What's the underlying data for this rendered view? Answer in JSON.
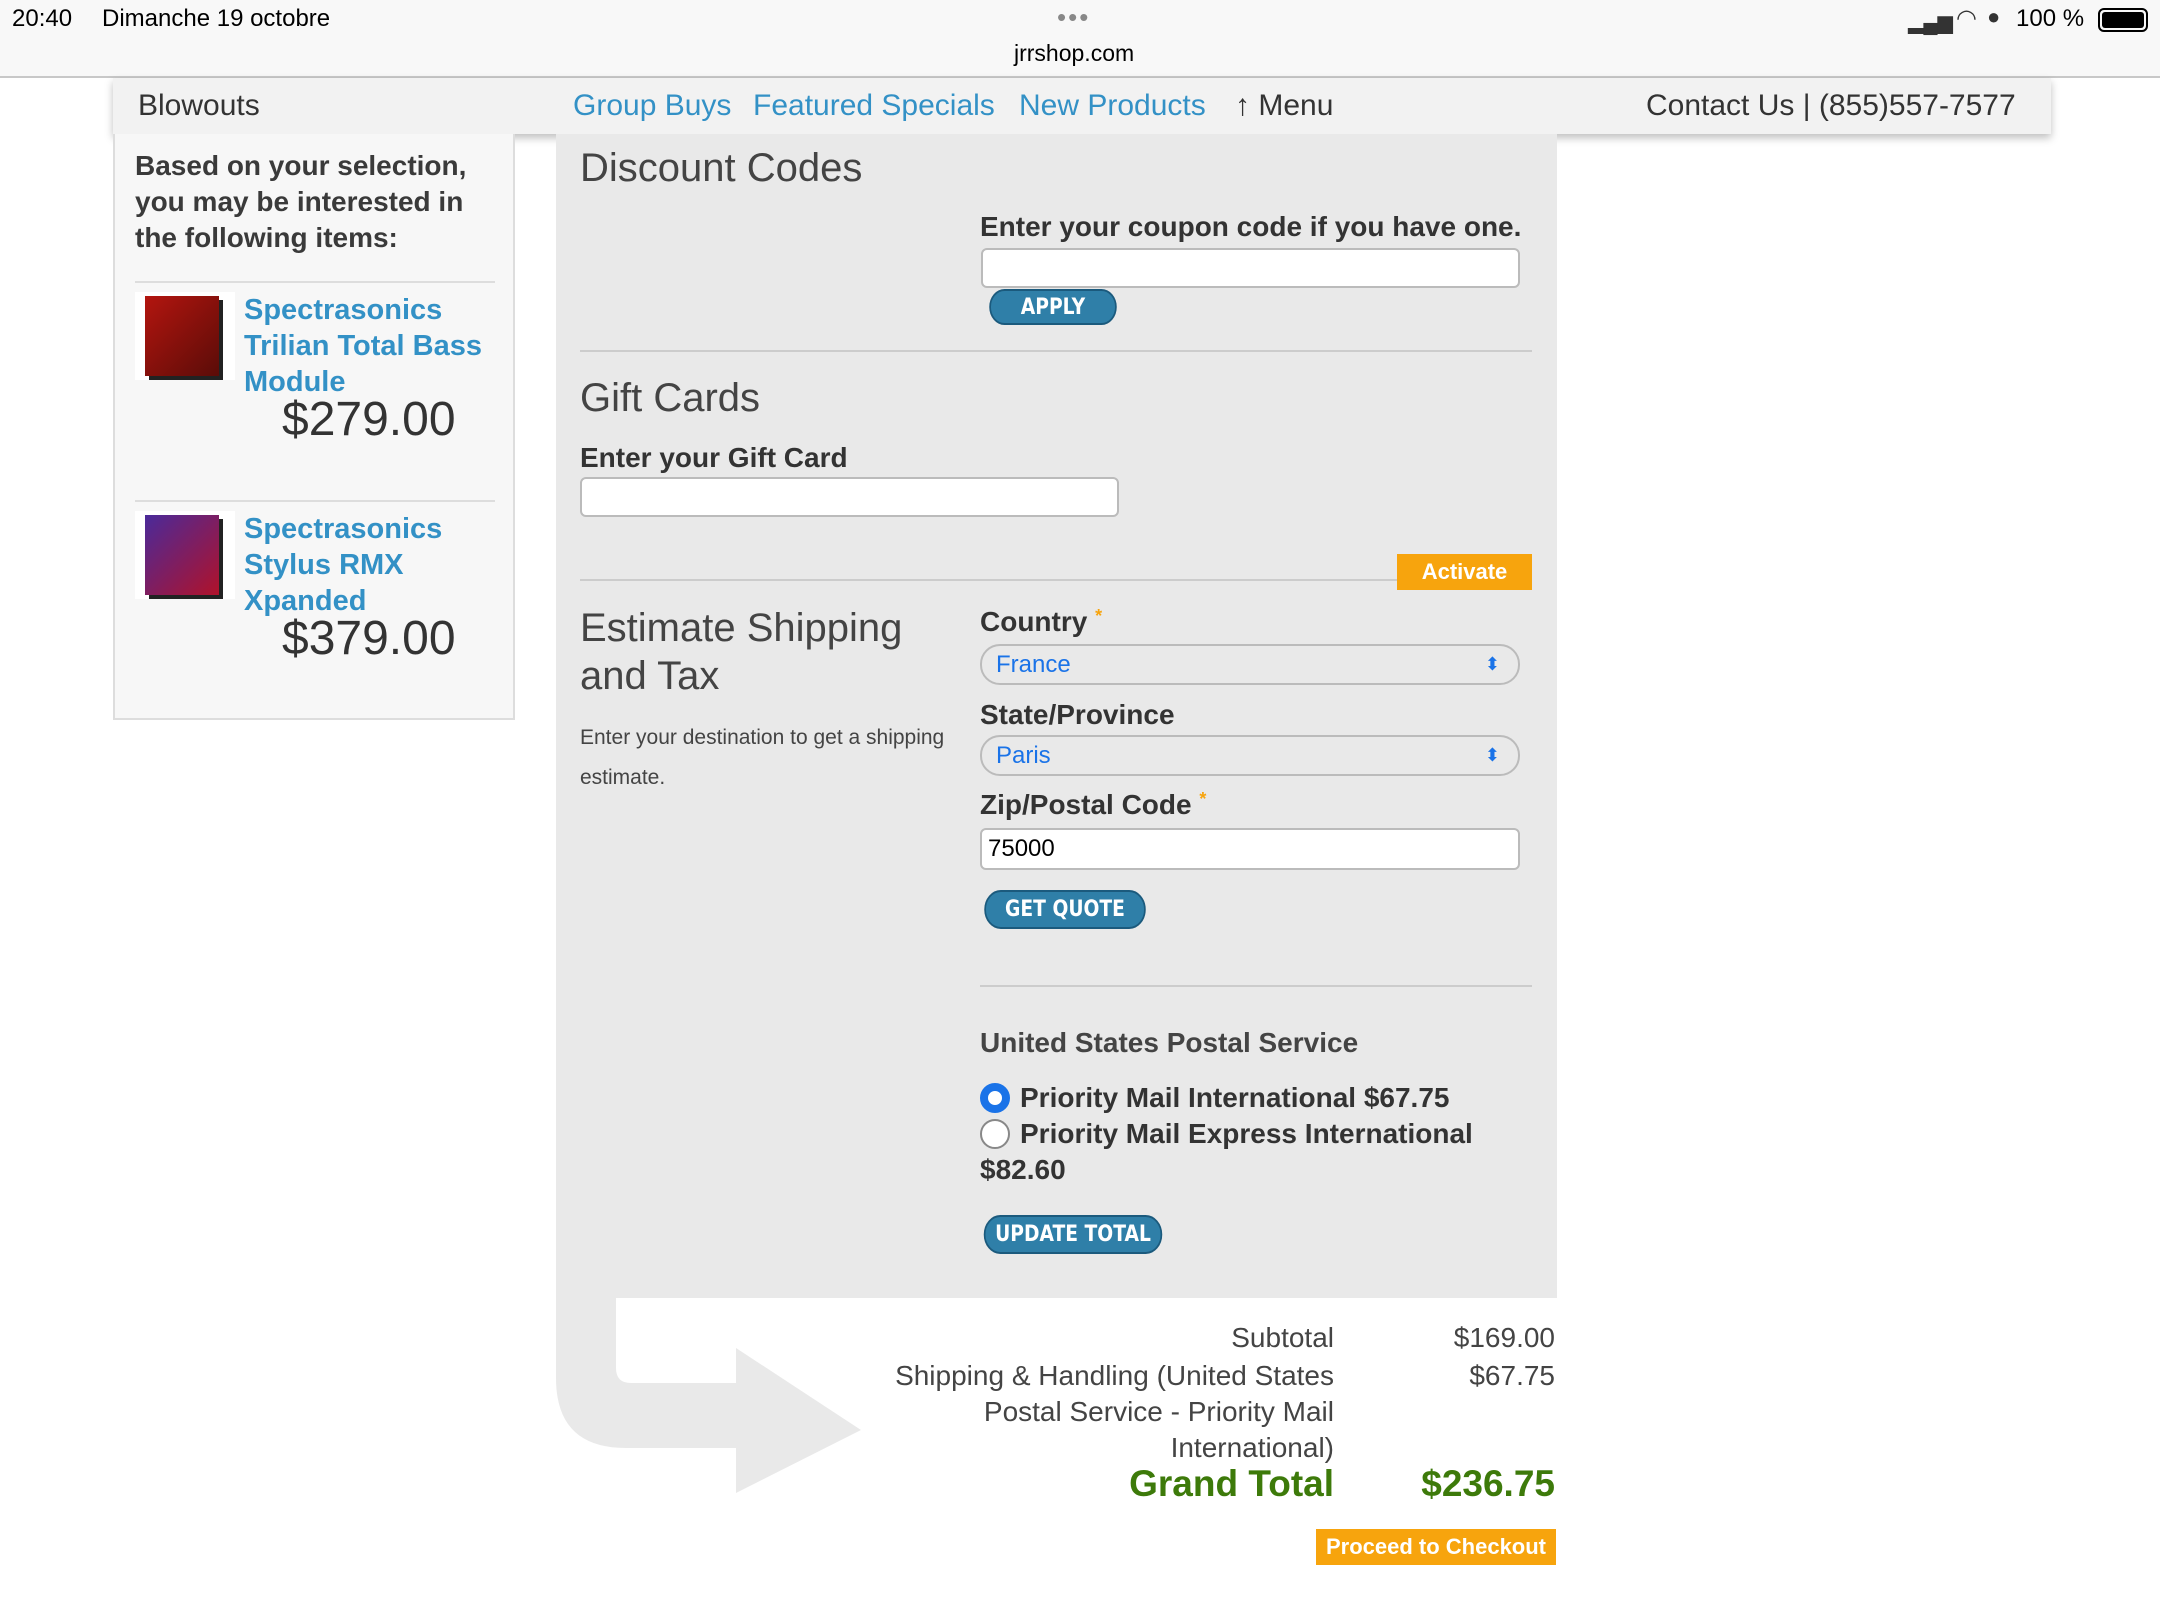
{
  "status_bar": {
    "time": "20:40",
    "date": "Dimanche 19 octobre",
    "url": "jrrshop.com",
    "battery": "100 %"
  },
  "nav": {
    "blowouts": "Blowouts",
    "group_buys": "Group Buys",
    "featured": "Featured Specials",
    "new_products": "New Products",
    "menu": "↑ Menu",
    "contact": "Contact Us | (855)557-7577"
  },
  "sidebar": {
    "heading": "Based on your selection, you may be interested in the following items:",
    "items": [
      {
        "name": "Spectrasonics Trilian Total Bass Module",
        "price": "$279.00"
      },
      {
        "name": "Spectrasonics Stylus RMX Xpanded",
        "price": "$379.00"
      }
    ]
  },
  "discount": {
    "title": "Discount Codes",
    "label": "Enter your coupon code if you have one.",
    "value": "",
    "apply": "APPLY"
  },
  "gift": {
    "title": "Gift Cards",
    "label": "Enter your Gift Card",
    "value": "",
    "activate": "Activate"
  },
  "shipping": {
    "title": "Estimate Shipping and Tax",
    "desc": "Enter your destination to get a shipping estimate.",
    "country_label": "Country",
    "country": "France",
    "state_label": "State/Province",
    "state": "Paris",
    "zip_label": "Zip/Postal Code",
    "zip": "75000",
    "required": "*",
    "get_quote": "GET QUOTE",
    "carrier": "United States Postal Service",
    "options": [
      {
        "label": "Priority Mail International $67.75",
        "selected": true
      },
      {
        "label": "Priority Mail Express International",
        "price": "$82.60",
        "selected": false
      }
    ],
    "update": "UPDATE TOTAL"
  },
  "totals": {
    "subtotal_label": "Subtotal",
    "subtotal": "$169.00",
    "shipping_lines": [
      "Shipping & Handling (United States",
      "Postal Service - Priority Mail",
      "International)"
    ],
    "shipping": "$67.75",
    "grand_label": "Grand Total",
    "grand": "$236.75",
    "checkout": "Proceed to Checkout"
  },
  "colors": {
    "link": "#3391c6",
    "accent": "#f7a40d",
    "button": "#2f7fa8",
    "grand_total": "#3d7a0a"
  }
}
